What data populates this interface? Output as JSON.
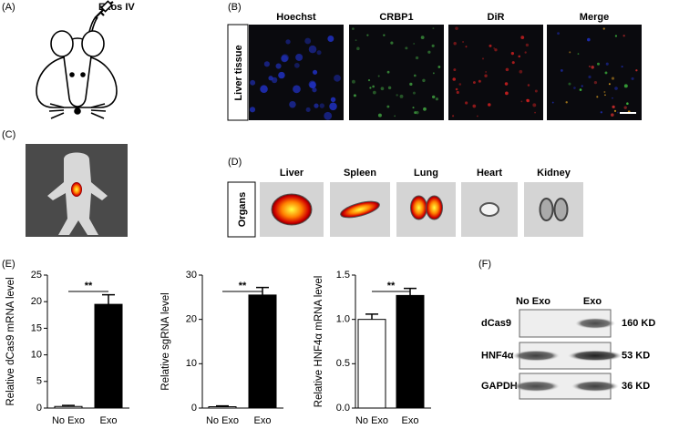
{
  "panels": {
    "a": {
      "label": "(A)",
      "injection": "Exos IV"
    },
    "b": {
      "label": "(B)",
      "columns": [
        "Hoechst",
        "CRBP1",
        "DiR",
        "Merge"
      ],
      "row": "Liver tissue"
    },
    "c": {
      "label": "(C)"
    },
    "d": {
      "label": "(D)",
      "columns": [
        "Liver",
        "Spleen",
        "Lung",
        "Heart",
        "Kidney"
      ],
      "row": "Organs"
    },
    "e": {
      "label": "(E)"
    },
    "f": {
      "label": "(F)",
      "lanes": [
        "No Exo",
        "Exo"
      ],
      "proteins": [
        "dCas9",
        "HNF4α",
        "GAPDH"
      ],
      "sizes": [
        "160 KD",
        "53 KD",
        "36 KD"
      ]
    }
  },
  "chart_data": [
    {
      "type": "bar",
      "ylabel": "Relative dCas9 mRNA level",
      "categories": [
        "No Exo",
        "Exo"
      ],
      "values": [
        0.3,
        19.5
      ],
      "errors": [
        0.2,
        1.8
      ],
      "colors": [
        "#ffffff",
        "#000000"
      ],
      "ylim": [
        0,
        25
      ],
      "yticks": [
        0,
        5,
        10,
        15,
        20,
        25
      ],
      "annotation": "**"
    },
    {
      "type": "bar",
      "ylabel": "Relative sgRNA level",
      "categories": [
        "No Exo",
        "Exo"
      ],
      "values": [
        0.3,
        25.5
      ],
      "errors": [
        0.2,
        1.7
      ],
      "colors": [
        "#ffffff",
        "#000000"
      ],
      "ylim": [
        0,
        30
      ],
      "yticks": [
        0,
        10,
        20,
        30
      ],
      "annotation": "**"
    },
    {
      "type": "bar",
      "ylabel": "Relative HNF4α mRNA level",
      "categories": [
        "No Exo",
        "Exo"
      ],
      "values": [
        1.0,
        1.27
      ],
      "errors": [
        0.06,
        0.08
      ],
      "colors": [
        "#ffffff",
        "#000000"
      ],
      "ylim": [
        0,
        1.5
      ],
      "yticks": [
        {
          "value": 0,
          "label": "0.0"
        },
        0.5,
        {
          "value": 1,
          "label": "1.0"
        },
        1.5
      ],
      "annotation": "**"
    }
  ]
}
